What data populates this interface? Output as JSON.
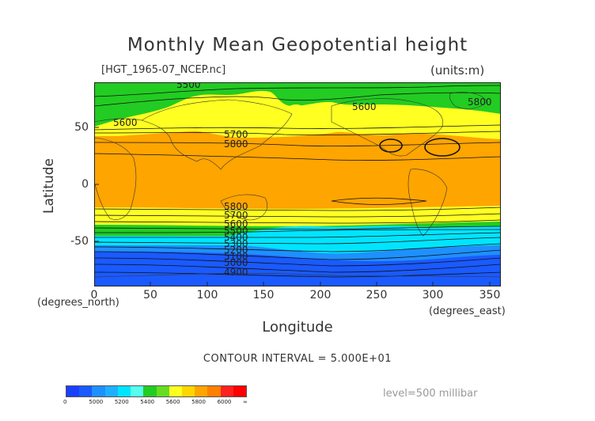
{
  "title": "Monthly Mean Geopotential height",
  "file_label": "[HGT_1965-07_NCEP.nc]",
  "units_label": "(units:m)",
  "ylabel": "Latitude",
  "xlabel": "Longitude",
  "x_units": "(degrees_east)",
  "y_units": "(degrees_north)",
  "contour_interval": "CONTOUR INTERVAL = 5.000E+01",
  "level": "level=500 millibar",
  "axes": {
    "x_ticks": [
      "0",
      "50",
      "100",
      "150",
      "200",
      "250",
      "300",
      "350"
    ],
    "y_ticks": [
      "50",
      "0",
      "-50"
    ],
    "x_range": [
      0,
      360
    ],
    "y_range": [
      -90,
      90
    ]
  },
  "fill_colors": {
    "below_5000": "#1a5aff",
    "5000_5200": "#1e90ff",
    "5200_5400": "#00e5ff",
    "5400_5600": "#22cc22",
    "5600_5800": "#ffff22",
    "5800_6000": "#ffa500",
    "above_6000": "#ff2020"
  },
  "contour_labels": [
    "5500",
    "5600",
    "5600",
    "5800",
    "5700",
    "5800",
    "5800",
    "5700",
    "5600",
    "5500",
    "5400",
    "5300",
    "5200",
    "5100",
    "5000",
    "4900"
  ],
  "colorbar": {
    "colors": [
      "#1a40ff",
      "#1a5aff",
      "#1e90ff",
      "#1eb0ff",
      "#00e5ff",
      "#55ffee",
      "#22cc22",
      "#66dd22",
      "#ffff22",
      "#ffd700",
      "#ffa500",
      "#ff8000",
      "#ff2020",
      "#ff0000"
    ],
    "labels": [
      "0",
      "5000",
      "5200",
      "5400",
      "5600",
      "5800",
      "6000",
      "∞"
    ]
  }
}
